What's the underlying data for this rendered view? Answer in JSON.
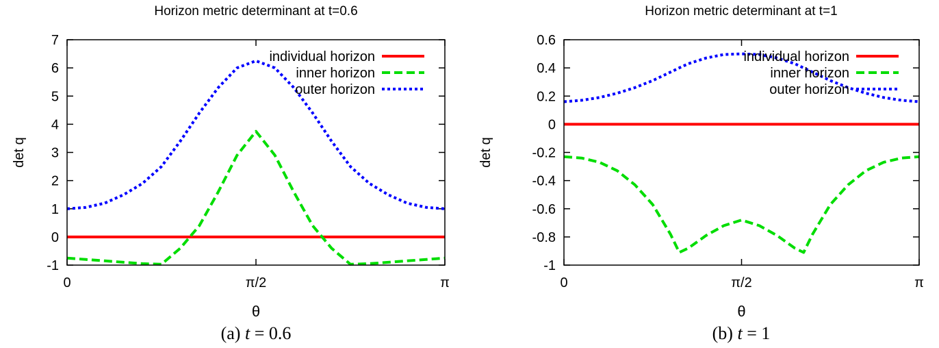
{
  "chart_data": [
    {
      "type": "line",
      "title": "Horizon metric determinant at t=0.6",
      "xlabel": "θ",
      "ylabel": "det q",
      "caption": {
        "prefix": "(a) ",
        "var": "t",
        "rest": " =  0.6"
      },
      "xlim": [
        0,
        3.14159
      ],
      "ylim": [
        -1,
        7
      ],
      "yticks": [
        -1,
        0,
        1,
        2,
        3,
        4,
        5,
        6,
        7
      ],
      "xticks": [
        {
          "value": 0,
          "label": "0"
        },
        {
          "value": 1.5708,
          "label": "π/2"
        },
        {
          "value": 3.14159,
          "label": "π"
        }
      ],
      "grid": false,
      "legend": "top-right",
      "x": [
        0,
        0.157,
        0.314,
        0.471,
        0.628,
        0.785,
        0.942,
        1.1,
        1.257,
        1.414,
        1.571,
        1.728,
        1.885,
        2.042,
        2.199,
        2.356,
        2.513,
        2.67,
        2.827,
        2.985,
        3.142
      ],
      "series": [
        {
          "name": "individual horizon",
          "color": "#ff0000",
          "dash": "solid",
          "values": [
            0,
            0,
            0,
            0,
            0,
            0,
            0,
            0,
            0,
            0,
            0,
            0,
            0,
            0,
            0,
            0,
            0,
            0,
            0,
            0,
            0
          ]
        },
        {
          "name": "inner horizon",
          "color": "#00dd00",
          "dash": "dashed",
          "values": [
            -0.75,
            -0.8,
            -0.85,
            -0.9,
            -0.95,
            -0.97,
            -0.4,
            0.4,
            1.6,
            2.9,
            3.75,
            2.9,
            1.6,
            0.4,
            -0.4,
            -0.97,
            -0.95,
            -0.9,
            -0.85,
            -0.8,
            -0.75
          ]
        },
        {
          "name": "outer horizon",
          "color": "#0000ff",
          "dash": "dotted",
          "values": [
            1.0,
            1.05,
            1.2,
            1.5,
            1.9,
            2.5,
            3.4,
            4.4,
            5.3,
            6.0,
            6.25,
            6.0,
            5.3,
            4.4,
            3.4,
            2.5,
            1.9,
            1.5,
            1.2,
            1.05,
            1.0
          ]
        }
      ]
    },
    {
      "type": "line",
      "title": "Horizon metric determinant at t=1",
      "xlabel": "θ",
      "ylabel": "det q",
      "caption": {
        "prefix": "(b) ",
        "var": "t",
        "rest": " =  1"
      },
      "xlim": [
        0,
        3.14159
      ],
      "ylim": [
        -1,
        0.6
      ],
      "yticks": [
        -1,
        -0.8,
        -0.6,
        -0.4,
        -0.2,
        0,
        0.2,
        0.4,
        0.6
      ],
      "xticks": [
        {
          "value": 0,
          "label": "0"
        },
        {
          "value": 1.5708,
          "label": "π/2"
        },
        {
          "value": 3.14159,
          "label": "π"
        }
      ],
      "grid": false,
      "legend": "top-right",
      "x": [
        0,
        0.157,
        0.314,
        0.471,
        0.628,
        0.785,
        0.942,
        1.02,
        1.1,
        1.257,
        1.414,
        1.571,
        1.728,
        1.885,
        2.042,
        2.12,
        2.199,
        2.356,
        2.513,
        2.67,
        2.827,
        2.985,
        3.142
      ],
      "series": [
        {
          "name": "individual horizon",
          "color": "#ff0000",
          "dash": "solid",
          "values": [
            0,
            0,
            0,
            0,
            0,
            0,
            0,
            0,
            0,
            0,
            0,
            0,
            0,
            0,
            0,
            0,
            0,
            0,
            0,
            0,
            0,
            0,
            0
          ]
        },
        {
          "name": "inner horizon",
          "color": "#00dd00",
          "dash": "dashed",
          "values": [
            -0.23,
            -0.24,
            -0.27,
            -0.33,
            -0.43,
            -0.57,
            -0.78,
            -0.91,
            -0.88,
            -0.79,
            -0.72,
            -0.68,
            -0.72,
            -0.79,
            -0.88,
            -0.91,
            -0.78,
            -0.57,
            -0.43,
            -0.33,
            -0.27,
            -0.24,
            -0.23
          ]
        },
        {
          "name": "outer horizon",
          "color": "#0000ff",
          "dash": "dotted",
          "values": [
            0.16,
            0.17,
            0.19,
            0.22,
            0.26,
            0.31,
            0.37,
            0.4,
            0.43,
            0.47,
            0.495,
            0.5,
            0.495,
            0.47,
            0.43,
            0.4,
            0.37,
            0.31,
            0.26,
            0.22,
            0.19,
            0.17,
            0.16
          ]
        }
      ]
    }
  ]
}
